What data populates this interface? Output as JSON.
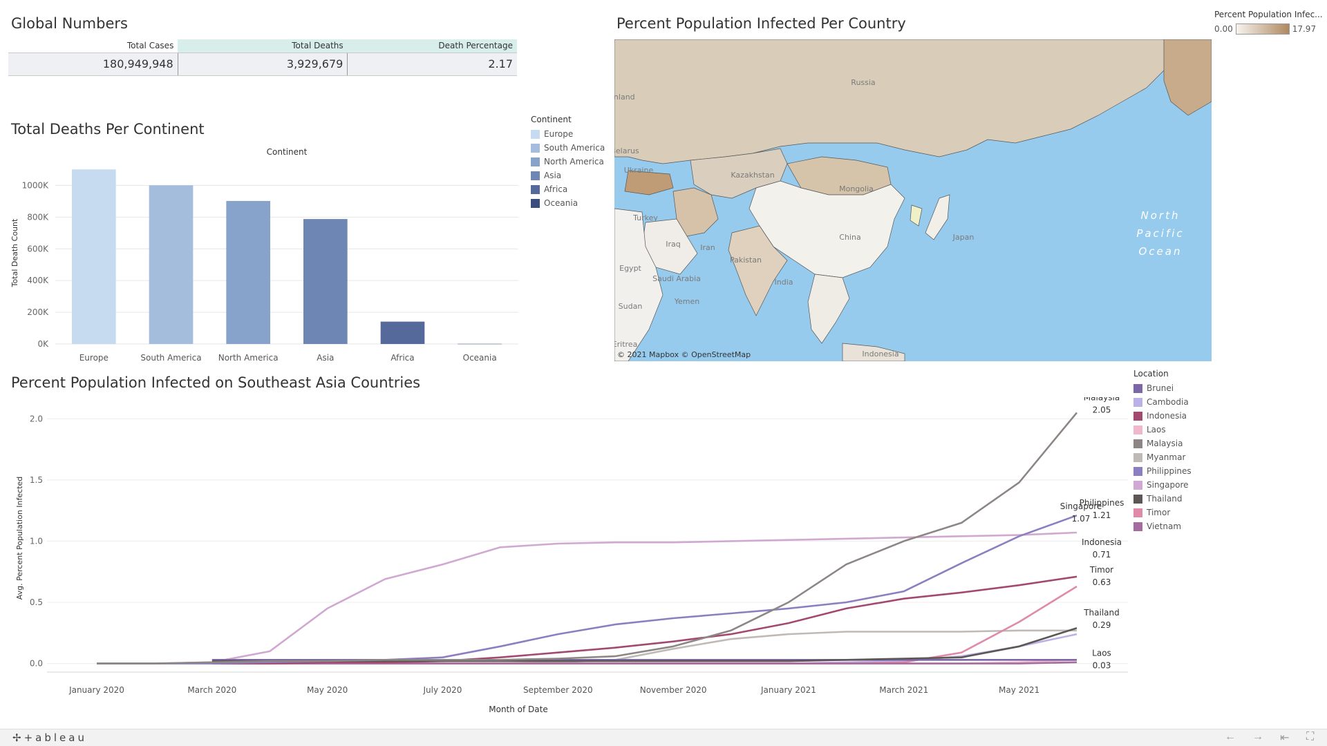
{
  "global_numbers": {
    "title": "Global Numbers",
    "headers": [
      "Total Cases",
      "Total Deaths",
      "Death Percentage"
    ],
    "values": [
      "180,949,948",
      "3,929,679",
      "2.17"
    ]
  },
  "deaths_chart": {
    "title": "Total Deaths Per Continent",
    "legend_title": "Continent",
    "legend": [
      {
        "name": "Europe",
        "color": "#c6dbf0"
      },
      {
        "name": "South America",
        "color": "#a4bddd"
      },
      {
        "name": "North America",
        "color": "#87a2cb"
      },
      {
        "name": "Asia",
        "color": "#6d86b3"
      },
      {
        "name": "Africa",
        "color": "#56699b"
      },
      {
        "name": "Oceania",
        "color": "#3b4d7e"
      }
    ]
  },
  "map": {
    "title": "Percent Population Infected Per Country",
    "attribution": "© 2021 Mapbox  © OpenStreetMap",
    "legend_title": "Percent Population Infec...",
    "legend_min": "0.00",
    "legend_max": "17.97",
    "labels": [
      {
        "name": "Russia"
      },
      {
        "name": "Kazakhstan"
      },
      {
        "name": "Mongolia"
      },
      {
        "name": "Ukraine"
      },
      {
        "name": "Belarus"
      },
      {
        "name": "Finland"
      },
      {
        "name": "Turkey"
      },
      {
        "name": "Iraq"
      },
      {
        "name": "Iran"
      },
      {
        "name": "China"
      },
      {
        "name": "Pakistan"
      },
      {
        "name": "India"
      },
      {
        "name": "Saudi Arabia"
      },
      {
        "name": "Egypt"
      },
      {
        "name": "Yemen"
      },
      {
        "name": "Sudan"
      },
      {
        "name": "Japan"
      },
      {
        "name": "Indonesia"
      },
      {
        "name": "Eritrea"
      }
    ],
    "ocean_label": "North Pacific Ocean",
    "colors": {
      "water": "#97cbed",
      "land": "#d9cdb9",
      "low": "#f6f3ee",
      "high": "#b0885e"
    }
  },
  "line_chart": {
    "title": "Percent Population Infected on Southeast Asia Countries",
    "legend_title": "Location"
  },
  "footer": {
    "logo": "+ableau",
    "nav_icons": [
      "back-icon",
      "forward-icon",
      "first-icon",
      "fullscreen-icon"
    ]
  },
  "chart_data": [
    {
      "type": "bar",
      "title": "Total Deaths Per Continent",
      "top_label": "Continent",
      "categories": [
        "Europe",
        "South America",
        "North America",
        "Asia",
        "Africa",
        "Oceania"
      ],
      "values": [
        1101000,
        1001000,
        902000,
        788000,
        141000,
        1100
      ],
      "colors": [
        "#c6dbf0",
        "#a4bddd",
        "#87a2cb",
        "#6d86b3",
        "#56699b",
        "#3b4d7e"
      ],
      "ylabel": "Total Death Count",
      "ylim": [
        0,
        1150000
      ],
      "yticks": [
        0,
        200000,
        400000,
        600000,
        800000,
        1000000
      ],
      "ytick_labels": [
        "0K",
        "200K",
        "400K",
        "600K",
        "800K",
        "1000K"
      ],
      "grid": true
    },
    {
      "type": "line",
      "title": "Percent Population Infected on Southeast Asia Countries",
      "xlabel": "Month of Date",
      "ylabel": "Avg. Percent Population Infected",
      "x": [
        "2020-01",
        "2020-02",
        "2020-03",
        "2020-04",
        "2020-05",
        "2020-06",
        "2020-07",
        "2020-08",
        "2020-09",
        "2020-10",
        "2020-11",
        "2020-12",
        "2021-01",
        "2021-02",
        "2021-03",
        "2021-04",
        "2021-05",
        "2021-06"
      ],
      "xtick_labels": [
        {
          "month": "2020-01",
          "label": "January 2020"
        },
        {
          "month": "2020-03",
          "label": "March 2020"
        },
        {
          "month": "2020-05",
          "label": "May 2020"
        },
        {
          "month": "2020-07",
          "label": "July 2020"
        },
        {
          "month": "2020-09",
          "label": "September 2020"
        },
        {
          "month": "2020-11",
          "label": "November 2020"
        },
        {
          "month": "2021-01",
          "label": "January 2021"
        },
        {
          "month": "2021-03",
          "label": "March 2021"
        },
        {
          "month": "2021-05",
          "label": "May 2021"
        }
      ],
      "ylim": [
        -0.07,
        2.12
      ],
      "yticks": [
        0.0,
        0.5,
        1.0,
        1.5,
        2.0
      ],
      "ytick_labels": [
        "0.0",
        "0.5",
        "1.0",
        "1.5",
        "2.0"
      ],
      "legend_title": "Location",
      "series": [
        {
          "name": "Brunei",
          "color": "#7b66a6",
          "start": "2020-03",
          "values": [
            null,
            null,
            0.03,
            0.03,
            0.03,
            0.03,
            0.03,
            0.03,
            0.03,
            0.03,
            0.03,
            0.03,
            0.03,
            0.03,
            0.03,
            0.03,
            0.03,
            0.03
          ]
        },
        {
          "name": "Cambodia",
          "color": "#bcb1e6",
          "start": "2020-03",
          "values": [
            null,
            null,
            0.0,
            0.0,
            0.0,
            0.0,
            0.0,
            0.0,
            0.0,
            0.0,
            0.0,
            0.0,
            0.0,
            0.01,
            0.02,
            0.06,
            0.14,
            0.24
          ]
        },
        {
          "name": "Indonesia",
          "color": "#a3486e",
          "start": "2020-03",
          "values": [
            null,
            null,
            0.0,
            0.0,
            0.01,
            0.01,
            0.02,
            0.05,
            0.09,
            0.13,
            0.18,
            0.24,
            0.33,
            0.45,
            0.53,
            0.58,
            0.64,
            0.71
          ]
        },
        {
          "name": "Laos",
          "color": "#f0b8cd",
          "start": "2020-03",
          "values": [
            null,
            null,
            0.0,
            0.0,
            0.0,
            0.0,
            0.0,
            0.0,
            0.0,
            0.0,
            0.0,
            0.0,
            0.0,
            0.0,
            0.0,
            0.0,
            0.01,
            0.03
          ]
        },
        {
          "name": "Malaysia",
          "color": "#8c8685",
          "start": "2020-01",
          "values": [
            0.0,
            0.0,
            0.01,
            0.02,
            0.02,
            0.03,
            0.03,
            0.03,
            0.04,
            0.06,
            0.14,
            0.27,
            0.5,
            0.81,
            1.0,
            1.15,
            1.48,
            2.05
          ]
        },
        {
          "name": "Myanmar",
          "color": "#bfbab6",
          "start": "2020-03",
          "values": [
            null,
            null,
            0.0,
            0.0,
            0.0,
            0.0,
            0.0,
            0.0,
            0.01,
            0.03,
            0.12,
            0.2,
            0.24,
            0.26,
            0.26,
            0.26,
            0.27,
            0.27
          ]
        },
        {
          "name": "Philippines",
          "color": "#8c7fc0",
          "start": "2020-01",
          "values": [
            0.0,
            0.0,
            0.0,
            0.01,
            0.02,
            0.03,
            0.05,
            0.14,
            0.24,
            0.32,
            0.37,
            0.41,
            0.45,
            0.5,
            0.59,
            0.82,
            1.04,
            1.21
          ]
        },
        {
          "name": "Singapore",
          "color": "#d0a8d2",
          "start": "2020-01",
          "values": [
            0.0,
            0.0,
            0.01,
            0.1,
            0.45,
            0.69,
            0.81,
            0.95,
            0.98,
            0.99,
            0.99,
            1.0,
            1.01,
            1.02,
            1.03,
            1.04,
            1.05,
            1.07
          ]
        },
        {
          "name": "Thailand",
          "color": "#5c5654",
          "start": "2020-03",
          "values": [
            null,
            null,
            0.02,
            0.02,
            0.02,
            0.02,
            0.02,
            0.02,
            0.02,
            0.02,
            0.02,
            0.02,
            0.02,
            0.03,
            0.04,
            0.05,
            0.14,
            0.29
          ]
        },
        {
          "name": "Timor",
          "color": "#e08aa9",
          "start": "2020-03",
          "values": [
            null,
            null,
            0.0,
            0.0,
            0.0,
            0.0,
            0.0,
            0.0,
            0.0,
            0.0,
            0.0,
            0.0,
            0.0,
            0.0,
            0.01,
            0.09,
            0.34,
            0.63
          ]
        },
        {
          "name": "Vietnam",
          "color": "#a56d9d",
          "start": "2020-03",
          "values": [
            null,
            null,
            0.0,
            0.0,
            0.0,
            0.0,
            0.0,
            0.0,
            0.0,
            0.0,
            0.0,
            0.0,
            0.0,
            0.0,
            0.0,
            0.0,
            0.0,
            0.01
          ]
        }
      ],
      "end_labels": [
        {
          "name": "Malaysia",
          "value": "2.05"
        },
        {
          "name": "Philippines",
          "value": "1.21"
        },
        {
          "name": "Singapore",
          "value": "1.07"
        },
        {
          "name": "Indonesia",
          "value": "0.71"
        },
        {
          "name": "Timor",
          "value": "0.63"
        },
        {
          "name": "Thailand",
          "value": "0.29"
        },
        {
          "name": "Laos",
          "value": "0.03"
        }
      ],
      "grid": true
    }
  ]
}
